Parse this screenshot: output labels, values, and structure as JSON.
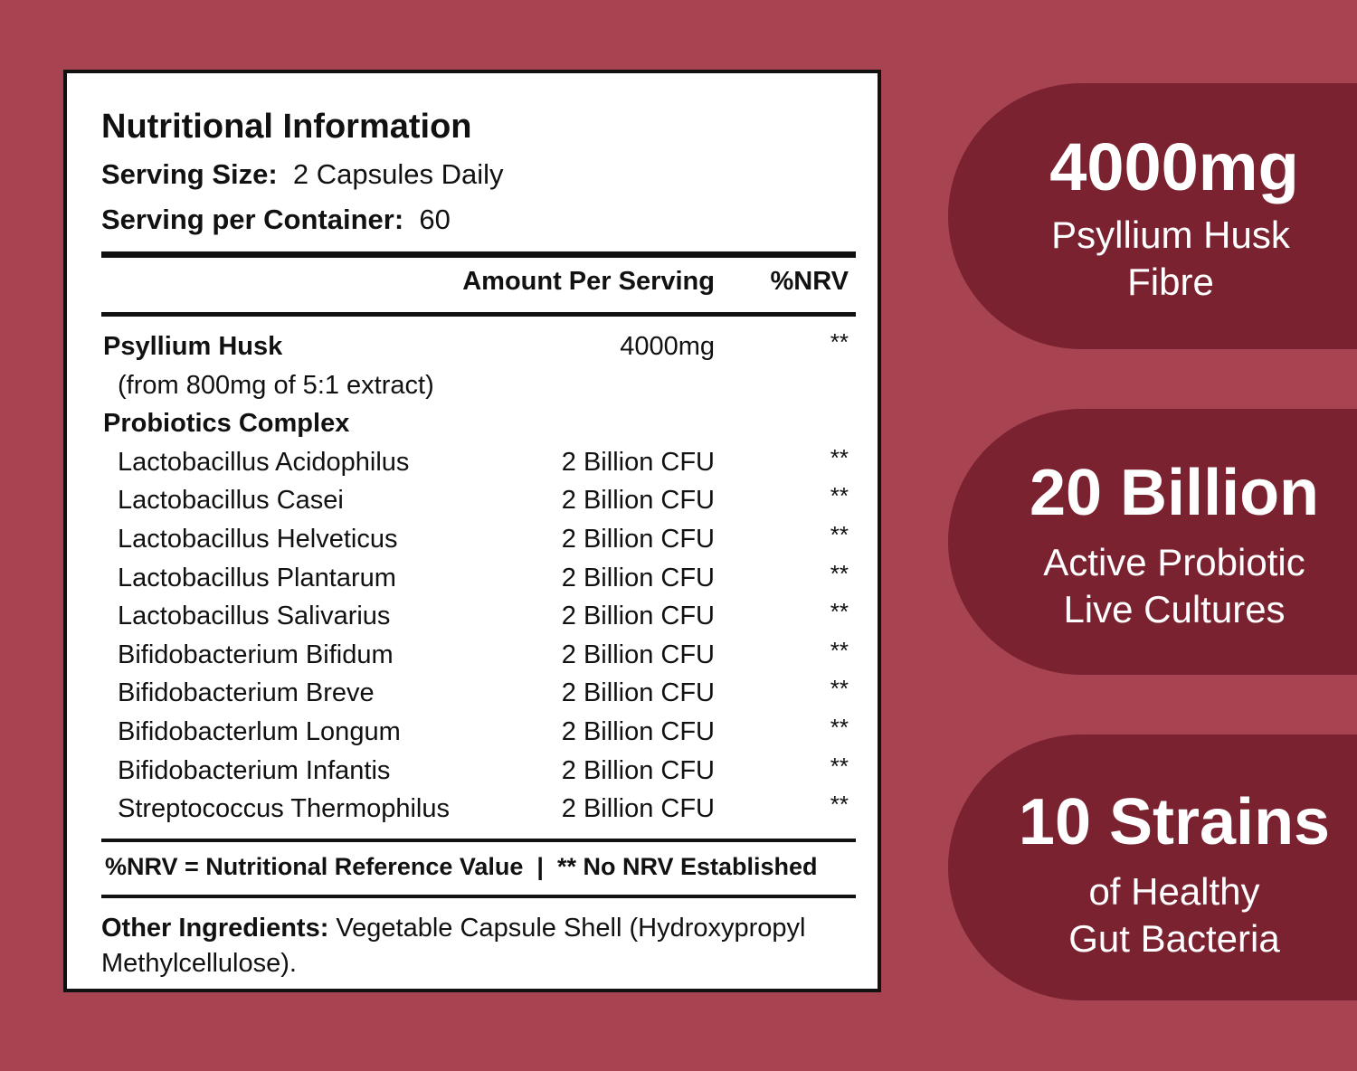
{
  "label": {
    "title": "Nutritional Information",
    "serving_size_label": "Serving Size:",
    "serving_size_value": "2 Capsules Daily",
    "servings_label": "Serving per Container:",
    "servings_value": "60",
    "header_amount": "Amount Per Serving",
    "header_nrv": "%NRV",
    "rows": [
      {
        "name": "Psyllium Husk",
        "amount": "4000mg",
        "nrv": "**"
      },
      {
        "name": "(from 800mg of 5:1 extract)",
        "amount": "",
        "nrv": ""
      },
      {
        "name": "Probiotics Complex",
        "amount": "",
        "nrv": ""
      },
      {
        "name": "Lactobacillus Acidophilus",
        "amount": "2 Billion CFU",
        "nrv": "**"
      },
      {
        "name": "Lactobacillus Casei",
        "amount": "2 Billion CFU",
        "nrv": "**"
      },
      {
        "name": "Lactobacillus Helveticus",
        "amount": "2 Billion CFU",
        "nrv": "**"
      },
      {
        "name": "Lactobacillus Plantarum",
        "amount": "2 Billion CFU",
        "nrv": "**"
      },
      {
        "name": "Lactobacillus Salivarius",
        "amount": "2 Billion CFU",
        "nrv": "**"
      },
      {
        "name": "Bifidobacterium Bifidum",
        "amount": "2 Billion CFU",
        "nrv": "**"
      },
      {
        "name": "Bifidobacterium Breve",
        "amount": "2 Billion CFU",
        "nrv": "**"
      },
      {
        "name": "Bifidobacterlum Longum",
        "amount": "2 Billion CFU",
        "nrv": "**"
      },
      {
        "name": "Bifidobacterium Infantis",
        "amount": "2 Billion CFU",
        "nrv": "**"
      },
      {
        "name": "Streptococcus Thermophilus",
        "amount": "2 Billion CFU",
        "nrv": "**"
      }
    ],
    "footnote": "%NRV = Nutritional Reference Value  |  ** No NRV Established",
    "other_label": "Other Ingredients:",
    "other_value": "Vegetable Capsule Shell (Hydroxypropyl Methylcellulose)."
  },
  "badges": [
    {
      "big": "4000mg",
      "line1": "Psyllium Husk",
      "line2": "Fibre"
    },
    {
      "big": "20 Billion",
      "line1": "Active Probiotic",
      "line2": "Live Cultures"
    },
    {
      "big": "10 Strains",
      "line1": "of Healthy",
      "line2": "Gut Bacteria"
    }
  ],
  "colors": {
    "background": "#a84452",
    "badge": "#7a2230",
    "panel": "#ffffff"
  }
}
